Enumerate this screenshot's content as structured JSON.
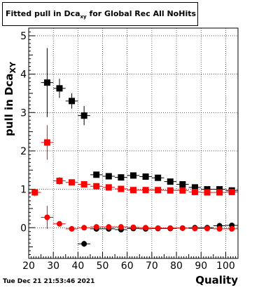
{
  "title": {
    "main": "Fitted pull in Dca",
    "sub": "xy",
    "rest": " for Global Rec All NoHits"
  },
  "timestamp": "Tue Dec 21 21:53:46 2021",
  "chart_data": {
    "type": "scatter",
    "title": "Fitted pull in Dca_xy for Global Rec All NoHits",
    "xlabel": "Quality",
    "ylabel": "pull in Dca_XY",
    "xlim": [
      20,
      105
    ],
    "ylim": [
      -0.8,
      5.2
    ],
    "xticks": [
      20,
      30,
      40,
      50,
      60,
      70,
      80,
      90,
      100
    ],
    "yticks": [
      0,
      1,
      2,
      3,
      4,
      5
    ],
    "grid": true,
    "series": [
      {
        "marker": "square",
        "color": "#000000",
        "points": [
          {
            "x": 27.5,
            "y": 3.78,
            "xerr": 2.5,
            "yerr": 0.9
          },
          {
            "x": 32.5,
            "y": 3.63,
            "xerr": 2.5,
            "yerr": 0.25
          },
          {
            "x": 37.5,
            "y": 3.3,
            "xerr": 2.5,
            "yerr": 0.2
          },
          {
            "x": 42.5,
            "y": 2.92,
            "xerr": 2.5,
            "yerr": 0.25
          },
          {
            "x": 47.5,
            "y": 1.38,
            "xerr": 2.5,
            "yerr": 0.05
          },
          {
            "x": 52.5,
            "y": 1.34,
            "xerr": 2.5,
            "yerr": 0.05
          },
          {
            "x": 57.5,
            "y": 1.31,
            "xerr": 2.5,
            "yerr": 0.05
          },
          {
            "x": 62.5,
            "y": 1.36,
            "xerr": 2.5,
            "yerr": 0.05
          },
          {
            "x": 67.5,
            "y": 1.33,
            "xerr": 2.5,
            "yerr": 0.05
          },
          {
            "x": 72.5,
            "y": 1.3,
            "xerr": 2.5,
            "yerr": 0.05
          },
          {
            "x": 77.5,
            "y": 1.2,
            "xerr": 2.5,
            "yerr": 0.05
          },
          {
            "x": 82.5,
            "y": 1.13,
            "xerr": 2.5,
            "yerr": 0.05
          },
          {
            "x": 87.5,
            "y": 1.05,
            "xerr": 2.5,
            "yerr": 0.05
          },
          {
            "x": 92.5,
            "y": 1.0,
            "xerr": 2.5,
            "yerr": 0.05
          },
          {
            "x": 97.5,
            "y": 1.0,
            "xerr": 2.5,
            "yerr": 0.05
          },
          {
            "x": 102.5,
            "y": 0.97,
            "xerr": 2.5,
            "yerr": 0.05
          }
        ]
      },
      {
        "marker": "square",
        "color": "#ff0000",
        "points": [
          {
            "x": 22.5,
            "y": 0.92,
            "xerr": 2.5,
            "yerr": 0.1
          },
          {
            "x": 27.5,
            "y": 2.22,
            "xerr": 2.5,
            "yerr": 0.45
          },
          {
            "x": 32.5,
            "y": 1.22,
            "xerr": 2.5,
            "yerr": 0.1
          },
          {
            "x": 37.5,
            "y": 1.18,
            "xerr": 2.5,
            "yerr": 0.05
          },
          {
            "x": 42.5,
            "y": 1.13,
            "xerr": 2.5,
            "yerr": 0.05
          },
          {
            "x": 47.5,
            "y": 1.08,
            "xerr": 2.5,
            "yerr": 0.05
          },
          {
            "x": 52.5,
            "y": 1.05,
            "xerr": 2.5,
            "yerr": 0.05
          },
          {
            "x": 57.5,
            "y": 1.01,
            "xerr": 2.5,
            "yerr": 0.05
          },
          {
            "x": 62.5,
            "y": 0.98,
            "xerr": 2.5,
            "yerr": 0.05
          },
          {
            "x": 67.5,
            "y": 0.98,
            "xerr": 2.5,
            "yerr": 0.05
          },
          {
            "x": 72.5,
            "y": 0.98,
            "xerr": 2.5,
            "yerr": 0.05
          },
          {
            "x": 77.5,
            "y": 0.97,
            "xerr": 2.5,
            "yerr": 0.05
          },
          {
            "x": 82.5,
            "y": 0.97,
            "xerr": 2.5,
            "yerr": 0.05
          },
          {
            "x": 87.5,
            "y": 0.93,
            "xerr": 2.5,
            "yerr": 0.05
          },
          {
            "x": 92.5,
            "y": 0.92,
            "xerr": 2.5,
            "yerr": 0.05
          },
          {
            "x": 97.5,
            "y": 0.92,
            "xerr": 2.5,
            "yerr": 0.05
          },
          {
            "x": 102.5,
            "y": 0.93,
            "xerr": 2.5,
            "yerr": 0.05
          }
        ]
      },
      {
        "marker": "circle",
        "color": "#000000",
        "points": [
          {
            "x": 42.5,
            "y": -0.42,
            "xerr": 2.5,
            "yerr": 0.08
          },
          {
            "x": 47.5,
            "y": -0.03,
            "xerr": 2.5,
            "yerr": 0.05
          },
          {
            "x": 52.5,
            "y": -0.03,
            "xerr": 2.5,
            "yerr": 0.05
          },
          {
            "x": 57.5,
            "y": -0.05,
            "xerr": 2.5,
            "yerr": 0.05
          },
          {
            "x": 62.5,
            "y": -0.02,
            "xerr": 2.5,
            "yerr": 0.05
          },
          {
            "x": 67.5,
            "y": -0.03,
            "xerr": 2.5,
            "yerr": 0.05
          },
          {
            "x": 72.5,
            "y": -0.02,
            "xerr": 2.5,
            "yerr": 0.05
          },
          {
            "x": 77.5,
            "y": -0.02,
            "xerr": 2.5,
            "yerr": 0.05
          },
          {
            "x": 82.5,
            "y": -0.01,
            "xerr": 2.5,
            "yerr": 0.05
          },
          {
            "x": 87.5,
            "y": 0.0,
            "xerr": 2.5,
            "yerr": 0.05
          },
          {
            "x": 92.5,
            "y": 0.0,
            "xerr": 2.5,
            "yerr": 0.05
          },
          {
            "x": 97.5,
            "y": 0.05,
            "xerr": 2.5,
            "yerr": 0.05
          },
          {
            "x": 102.5,
            "y": 0.06,
            "xerr": 2.5,
            "yerr": 0.05
          }
        ]
      },
      {
        "marker": "circle",
        "color": "#ff0000",
        "points": [
          {
            "x": 27.5,
            "y": 0.27,
            "xerr": 2.5,
            "yerr": 0.3
          },
          {
            "x": 32.5,
            "y": 0.1,
            "xerr": 2.5,
            "yerr": 0.05
          },
          {
            "x": 37.5,
            "y": -0.03,
            "xerr": 2.5,
            "yerr": 0.05
          },
          {
            "x": 42.5,
            "y": 0.0,
            "xerr": 2.5,
            "yerr": 0.05
          },
          {
            "x": 47.5,
            "y": 0.02,
            "xerr": 2.5,
            "yerr": 0.05
          },
          {
            "x": 52.5,
            "y": 0.02,
            "xerr": 2.5,
            "yerr": 0.05
          },
          {
            "x": 57.5,
            "y": 0.02,
            "xerr": 2.5,
            "yerr": 0.05
          },
          {
            "x": 62.5,
            "y": 0.01,
            "xerr": 2.5,
            "yerr": 0.05
          },
          {
            "x": 67.5,
            "y": 0.0,
            "xerr": 2.5,
            "yerr": 0.05
          },
          {
            "x": 72.5,
            "y": -0.01,
            "xerr": 2.5,
            "yerr": 0.05
          },
          {
            "x": 77.5,
            "y": -0.01,
            "xerr": 2.5,
            "yerr": 0.05
          },
          {
            "x": 82.5,
            "y": -0.01,
            "xerr": 2.5,
            "yerr": 0.05
          },
          {
            "x": 87.5,
            "y": -0.02,
            "xerr": 2.5,
            "yerr": 0.05
          },
          {
            "x": 92.5,
            "y": -0.02,
            "xerr": 2.5,
            "yerr": 0.05
          },
          {
            "x": 97.5,
            "y": -0.03,
            "xerr": 2.5,
            "yerr": 0.05
          },
          {
            "x": 102.5,
            "y": -0.03,
            "xerr": 2.5,
            "yerr": 0.05
          }
        ]
      }
    ]
  }
}
